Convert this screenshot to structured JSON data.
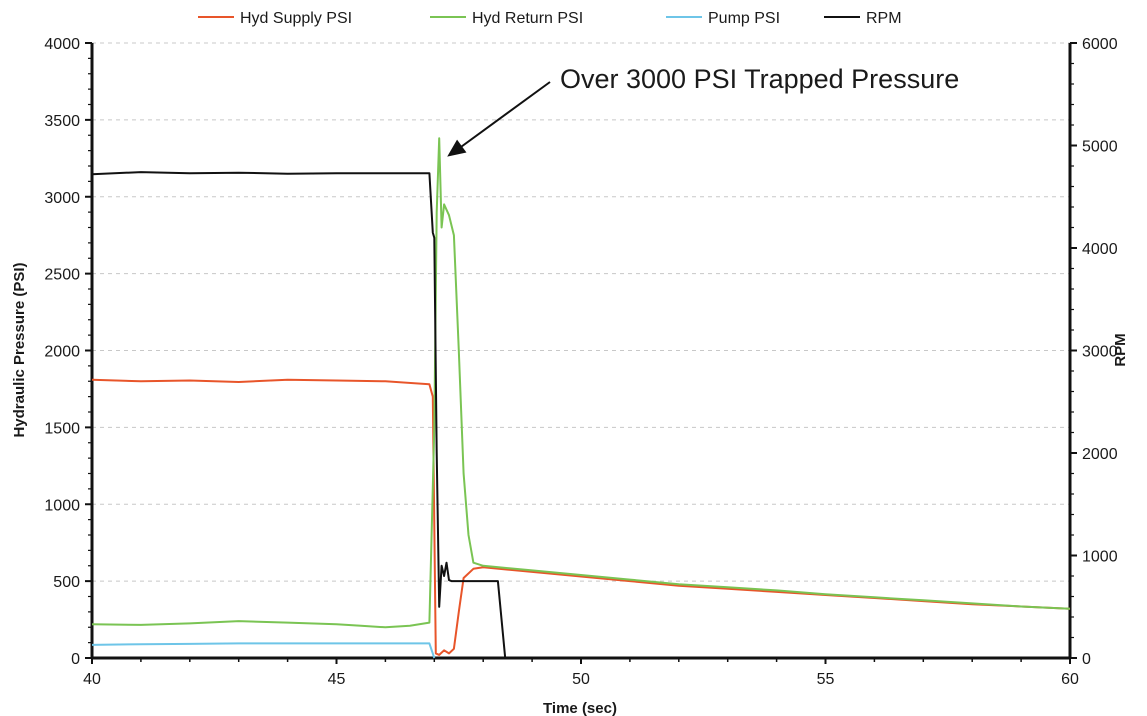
{
  "chart_data": {
    "type": "line",
    "title": "",
    "xlabel": "Time (sec)",
    "ylabel": "Hydraulic Pressure (PSI)",
    "y2label": "RPM",
    "xlim": [
      40,
      60
    ],
    "ylim": [
      0,
      4000
    ],
    "y2lim": [
      0,
      6000
    ],
    "x_ticks": [
      "40",
      "45",
      "50",
      "55",
      "60"
    ],
    "y_ticks": [
      "0",
      "500",
      "1000",
      "1500",
      "2000",
      "2500",
      "3000",
      "3500",
      "4000"
    ],
    "y2_ticks": [
      "0",
      "1000",
      "2000",
      "3000",
      "4000",
      "5000",
      "6000"
    ],
    "grid": "horizontal dashed",
    "legend_position": "top",
    "annotation": {
      "text": "Over 3000 PSI Trapped Pressure",
      "points_to": {
        "x": 47.1,
        "y": 3300
      }
    },
    "series": [
      {
        "name": "Hyd Supply PSI",
        "color": "#e8552a",
        "axis": "left",
        "x": [
          40,
          41,
          42,
          43,
          44,
          45,
          46,
          46.9,
          46.97,
          47.03,
          47.1,
          47.2,
          47.3,
          47.4,
          47.5,
          47.6,
          47.8,
          48.0,
          49,
          50,
          51,
          52,
          53,
          54,
          55,
          56,
          57,
          58,
          59,
          60
        ],
        "y": [
          1810,
          1800,
          1805,
          1795,
          1810,
          1805,
          1800,
          1780,
          1700,
          30,
          20,
          50,
          30,
          60,
          300,
          520,
          580,
          590,
          560,
          530,
          500,
          470,
          450,
          430,
          410,
          390,
          370,
          350,
          335,
          320
        ]
      },
      {
        "name": "Hyd Return PSI",
        "color": "#7ac453",
        "axis": "left",
        "x": [
          40,
          41,
          42,
          43,
          44,
          45,
          45.5,
          46,
          46.5,
          46.9,
          47.0,
          47.05,
          47.1,
          47.15,
          47.2,
          47.3,
          47.4,
          47.5,
          47.6,
          47.7,
          47.8,
          48.0,
          49,
          50,
          51,
          52,
          53,
          54,
          55,
          56,
          57,
          58,
          59,
          60
        ],
        "y": [
          220,
          215,
          225,
          240,
          230,
          220,
          210,
          200,
          210,
          230,
          1500,
          2900,
          3380,
          2800,
          2950,
          2880,
          2750,
          2000,
          1200,
          800,
          620,
          600,
          570,
          540,
          510,
          480,
          460,
          440,
          415,
          395,
          375,
          355,
          335,
          320
        ]
      },
      {
        "name": "Pump PSI",
        "color": "#6ec5e8",
        "axis": "left",
        "x": [
          40,
          41,
          42,
          43,
          44,
          45,
          46,
          46.9,
          47.0
        ],
        "y": [
          85,
          90,
          92,
          95,
          95,
          95,
          95,
          95,
          0
        ]
      },
      {
        "name": "RPM",
        "color": "#111111",
        "axis": "right",
        "x": [
          40,
          41,
          42,
          43,
          44,
          45,
          46,
          46.9,
          46.97,
          47.0,
          47.05,
          47.1,
          47.15,
          47.2,
          47.25,
          47.3,
          47.35,
          47.5,
          48.0,
          48.3,
          48.45
        ],
        "y": [
          4720,
          4740,
          4730,
          4735,
          4725,
          4730,
          4730,
          4730,
          4150,
          4100,
          2000,
          500,
          900,
          800,
          930,
          760,
          750,
          750,
          750,
          750,
          0
        ]
      }
    ]
  }
}
